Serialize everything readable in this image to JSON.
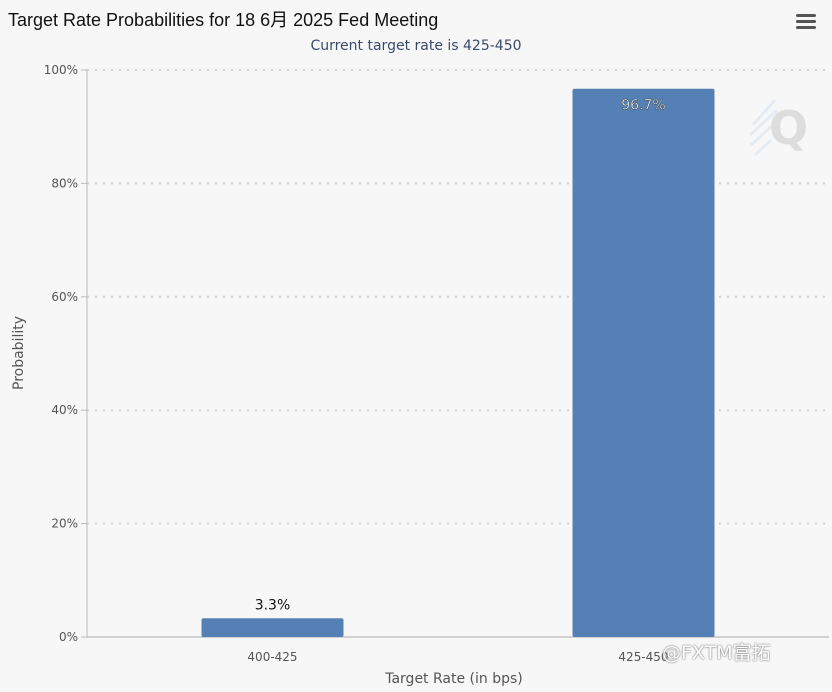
{
  "chart_data": {
    "type": "bar",
    "title": "Target Rate Probabilities for 18 6月 2025 Fed Meeting",
    "subtitle": "Current target rate is 425-450",
    "xlabel": "Target Rate (in bps)",
    "ylabel": "Probability",
    "categories": [
      "400-425",
      "425-450"
    ],
    "values": [
      3.3,
      96.7
    ],
    "data_labels": [
      "3.3%",
      "96.7%"
    ],
    "ylim": [
      0,
      100
    ],
    "yticks": [
      "0%",
      "20%",
      "40%",
      "60%",
      "80%",
      "100%"
    ],
    "grid": true,
    "bar_color": "#5580b5"
  },
  "watermark": "@FXTM富拓",
  "menu_icon": "hamburger-menu-icon"
}
